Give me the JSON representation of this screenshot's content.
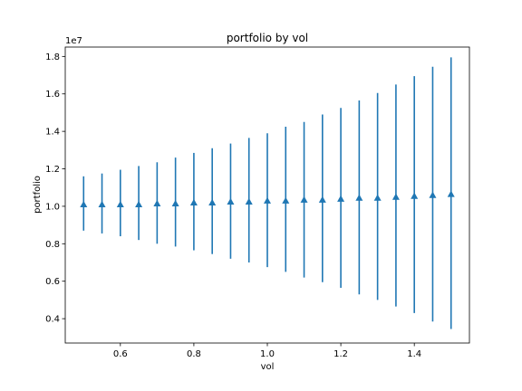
{
  "chart_data": {
    "type": "scatter",
    "title": "portfolio by vol",
    "xlabel": "vol",
    "ylabel": "portfolio",
    "y_offset_label": "1e7",
    "xlim": [
      0.45,
      1.55
    ],
    "ylim": [
      0.27,
      1.85
    ],
    "x_ticks": [
      0.6,
      0.8,
      1.0,
      1.2,
      1.4
    ],
    "x_tick_labels": [
      "0.6",
      "0.8",
      "1.0",
      "1.2",
      "1.4"
    ],
    "y_ticks": [
      0.4,
      0.6,
      0.8,
      1.0,
      1.2,
      1.4,
      1.6,
      1.8
    ],
    "y_tick_labels": [
      "0.4",
      "0.6",
      "0.8",
      "1.0",
      "1.2",
      "1.4",
      "1.6",
      "1.8"
    ],
    "grid": false,
    "marker": "triangle-up",
    "color": "#1f77b4",
    "series": [
      {
        "x": [
          0.5,
          0.55,
          0.6,
          0.65,
          0.7,
          0.75,
          0.8,
          0.85,
          0.9,
          0.95,
          1.0,
          1.05,
          1.1,
          1.15,
          1.2,
          1.25,
          1.3,
          1.35,
          1.4,
          1.45,
          1.5
        ],
        "y": [
          1.01,
          1.01,
          1.01,
          1.01,
          1.015,
          1.015,
          1.02,
          1.02,
          1.025,
          1.025,
          1.03,
          1.03,
          1.035,
          1.035,
          1.04,
          1.045,
          1.045,
          1.05,
          1.055,
          1.06,
          1.065
        ],
        "y_low": [
          0.87,
          0.855,
          0.84,
          0.82,
          0.8,
          0.785,
          0.765,
          0.745,
          0.72,
          0.7,
          0.675,
          0.65,
          0.62,
          0.595,
          0.565,
          0.53,
          0.5,
          0.465,
          0.43,
          0.385,
          0.345
        ],
        "y_high": [
          1.16,
          1.175,
          1.195,
          1.215,
          1.235,
          1.26,
          1.285,
          1.31,
          1.335,
          1.365,
          1.39,
          1.425,
          1.45,
          1.49,
          1.525,
          1.565,
          1.605,
          1.65,
          1.695,
          1.745,
          1.795
        ]
      }
    ]
  }
}
